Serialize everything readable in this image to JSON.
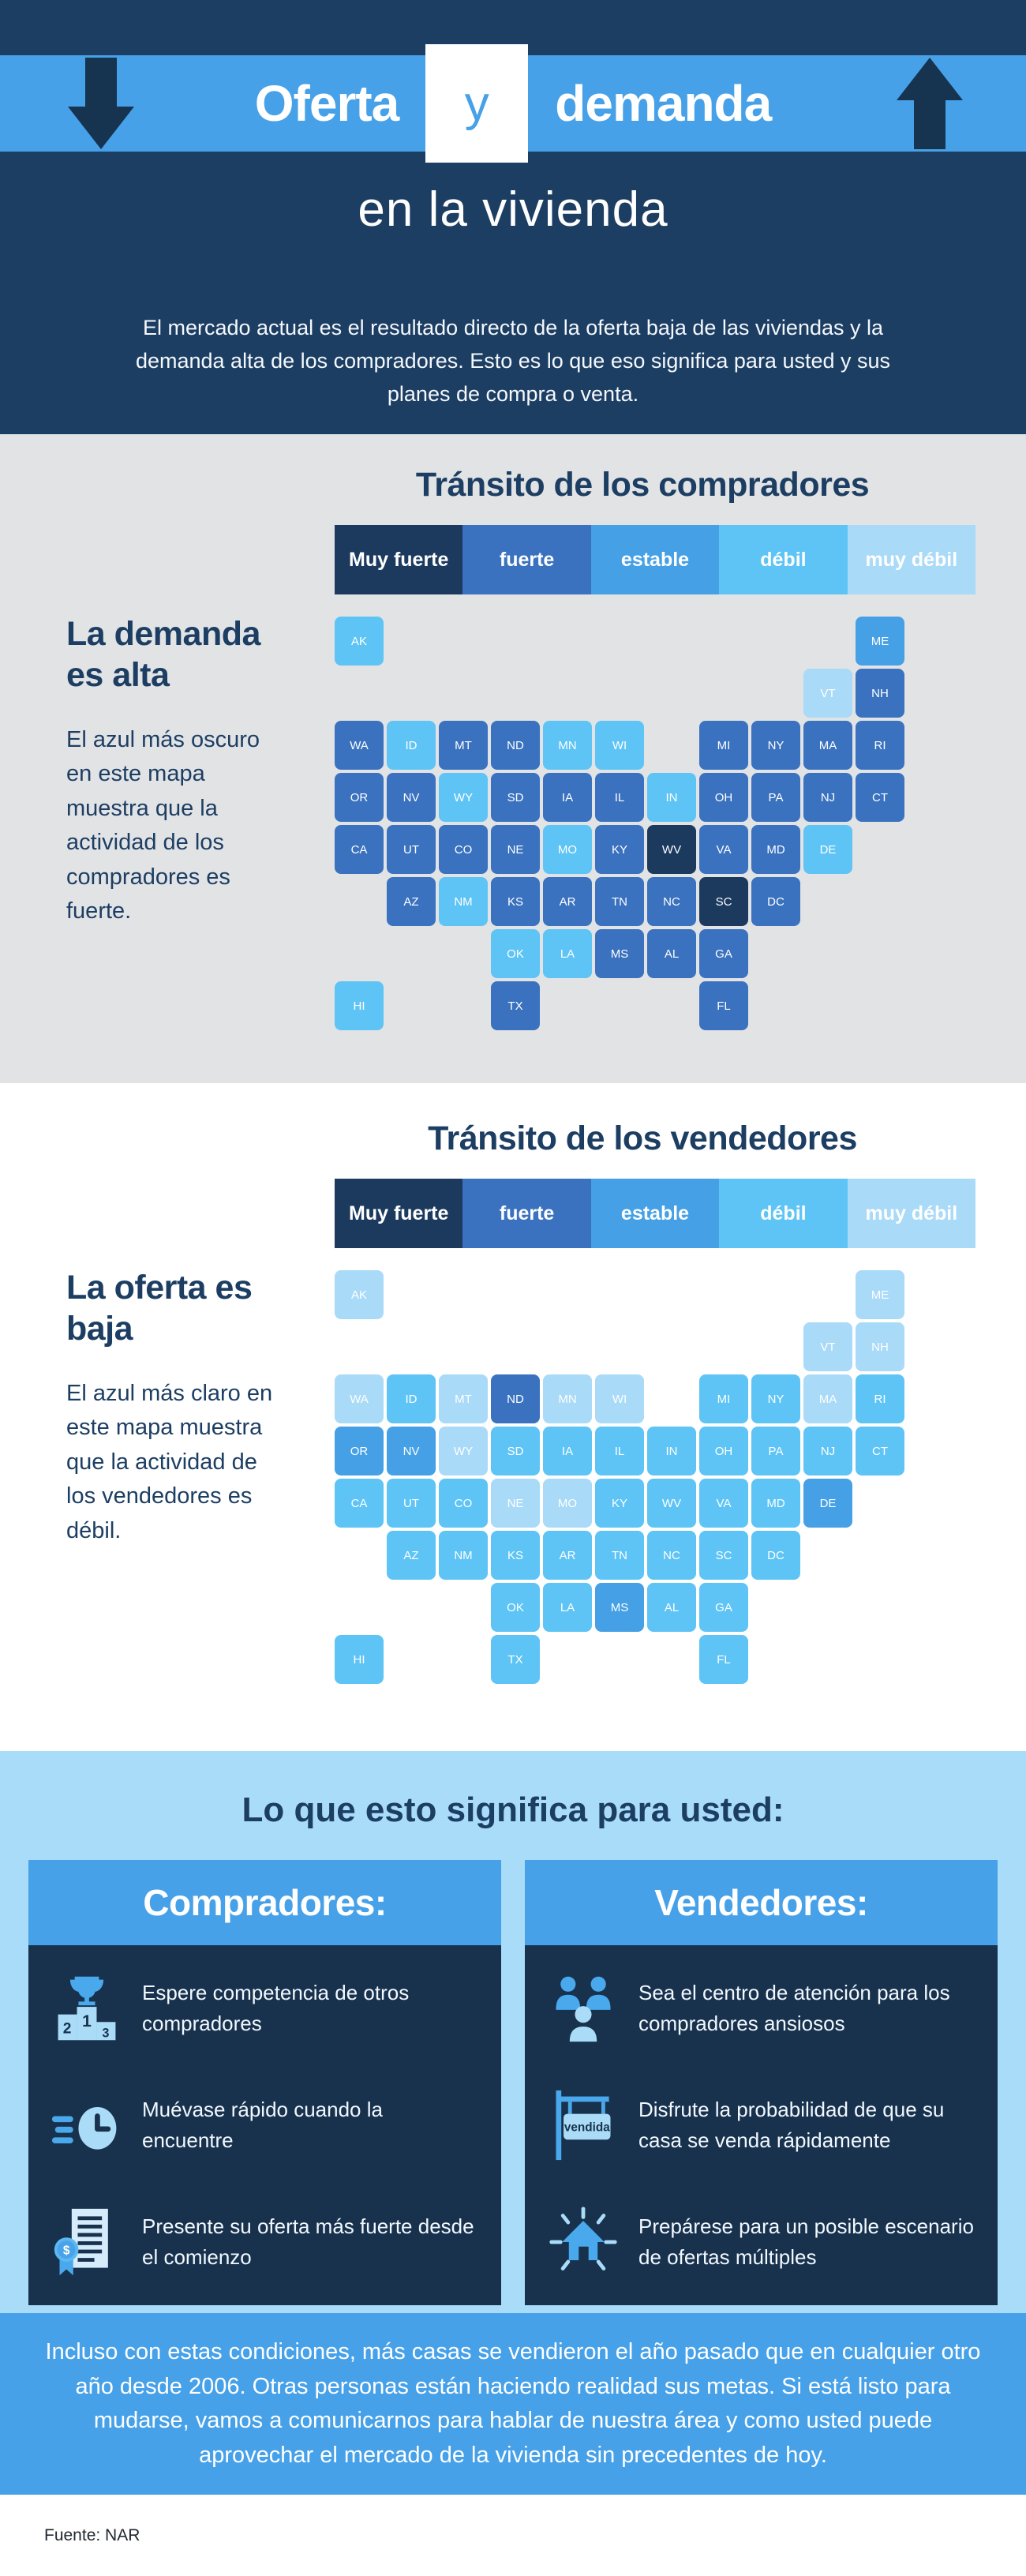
{
  "header": {
    "title_left": "Oferta",
    "title_conj": "y",
    "title_right": "demanda",
    "subtitle": "en la vivienda",
    "intro": "El mercado actual es el resultado directo de la oferta baja de las viviendas y la demanda alta de los compradores. Esto es lo que eso significa para usted y sus planes de compra o venta."
  },
  "colors": {
    "navy": "#1d3e63",
    "accent_blue": "#47a1e8",
    "arrow_navy": "#16334f",
    "card_body": "#18324e",
    "section_gray": "#e2e3e5",
    "meaning_bg": "#a9dcf8",
    "muy_fuerte": "#1b3a5e",
    "fuerte": "#3a72bf",
    "estable": "#45a0e5",
    "debil": "#5ec4f5",
    "muy_debil": "#a9daf8"
  },
  "legend": {
    "items": [
      {
        "key": "muy_fuerte",
        "label": "Muy fuerte"
      },
      {
        "key": "fuerte",
        "label": "fuerte"
      },
      {
        "key": "estable",
        "label": "estable"
      },
      {
        "key": "debil",
        "label": "débil"
      },
      {
        "key": "muy_debil",
        "label": "muy débil"
      }
    ]
  },
  "buyers_section": {
    "title": "Tránsito de los compradores",
    "heading": "La demanda es alta",
    "body": "El azul más oscuro en este mapa muestra que la actividad de los compradores es fuerte."
  },
  "sellers_section": {
    "title": "Tránsito de los vendedores",
    "heading": "La oferta es baja",
    "body": "El azul más claro en este mapa muestra que la actividad de los vendedores es débil."
  },
  "states": [
    {
      "abbr": "AK",
      "col": 0,
      "row": 0,
      "buyers": "debil",
      "sellers": "muy_debil"
    },
    {
      "abbr": "ME",
      "col": 10,
      "row": 0,
      "buyers": "estable",
      "sellers": "muy_debil"
    },
    {
      "abbr": "VT",
      "col": 9,
      "row": 1,
      "buyers": "muy_debil",
      "sellers": "muy_debil"
    },
    {
      "abbr": "NH",
      "col": 10,
      "row": 1,
      "buyers": "fuerte",
      "sellers": "muy_debil"
    },
    {
      "abbr": "WA",
      "col": 0,
      "row": 2,
      "buyers": "fuerte",
      "sellers": "muy_debil"
    },
    {
      "abbr": "ID",
      "col": 1,
      "row": 2,
      "buyers": "debil",
      "sellers": "debil"
    },
    {
      "abbr": "MT",
      "col": 2,
      "row": 2,
      "buyers": "fuerte",
      "sellers": "muy_debil"
    },
    {
      "abbr": "ND",
      "col": 3,
      "row": 2,
      "buyers": "fuerte",
      "sellers": "fuerte"
    },
    {
      "abbr": "MN",
      "col": 4,
      "row": 2,
      "buyers": "debil",
      "sellers": "muy_debil"
    },
    {
      "abbr": "WI",
      "col": 5,
      "row": 2,
      "buyers": "debil",
      "sellers": "muy_debil"
    },
    {
      "abbr": "MI",
      "col": 7,
      "row": 2,
      "buyers": "fuerte",
      "sellers": "debil"
    },
    {
      "abbr": "NY",
      "col": 8,
      "row": 2,
      "buyers": "fuerte",
      "sellers": "debil"
    },
    {
      "abbr": "MA",
      "col": 9,
      "row": 2,
      "buyers": "fuerte",
      "sellers": "muy_debil"
    },
    {
      "abbr": "RI",
      "col": 10,
      "row": 2,
      "buyers": "fuerte",
      "sellers": "debil"
    },
    {
      "abbr": "OR",
      "col": 0,
      "row": 3,
      "buyers": "fuerte",
      "sellers": "estable"
    },
    {
      "abbr": "NV",
      "col": 1,
      "row": 3,
      "buyers": "fuerte",
      "sellers": "estable"
    },
    {
      "abbr": "WY",
      "col": 2,
      "row": 3,
      "buyers": "debil",
      "sellers": "muy_debil"
    },
    {
      "abbr": "SD",
      "col": 3,
      "row": 3,
      "buyers": "fuerte",
      "sellers": "debil"
    },
    {
      "abbr": "IA",
      "col": 4,
      "row": 3,
      "buyers": "fuerte",
      "sellers": "debil"
    },
    {
      "abbr": "IL",
      "col": 5,
      "row": 3,
      "buyers": "fuerte",
      "sellers": "debil"
    },
    {
      "abbr": "IN",
      "col": 6,
      "row": 3,
      "buyers": "debil",
      "sellers": "debil"
    },
    {
      "abbr": "OH",
      "col": 7,
      "row": 3,
      "buyers": "fuerte",
      "sellers": "debil"
    },
    {
      "abbr": "PA",
      "col": 8,
      "row": 3,
      "buyers": "fuerte",
      "sellers": "debil"
    },
    {
      "abbr": "NJ",
      "col": 9,
      "row": 3,
      "buyers": "fuerte",
      "sellers": "debil"
    },
    {
      "abbr": "CT",
      "col": 10,
      "row": 3,
      "buyers": "fuerte",
      "sellers": "debil"
    },
    {
      "abbr": "CA",
      "col": 0,
      "row": 4,
      "buyers": "fuerte",
      "sellers": "debil"
    },
    {
      "abbr": "UT",
      "col": 1,
      "row": 4,
      "buyers": "fuerte",
      "sellers": "debil"
    },
    {
      "abbr": "CO",
      "col": 2,
      "row": 4,
      "buyers": "fuerte",
      "sellers": "debil"
    },
    {
      "abbr": "NE",
      "col": 3,
      "row": 4,
      "buyers": "fuerte",
      "sellers": "muy_debil"
    },
    {
      "abbr": "MO",
      "col": 4,
      "row": 4,
      "buyers": "debil",
      "sellers": "muy_debil"
    },
    {
      "abbr": "KY",
      "col": 5,
      "row": 4,
      "buyers": "fuerte",
      "sellers": "debil"
    },
    {
      "abbr": "WV",
      "col": 6,
      "row": 4,
      "buyers": "muy_fuerte",
      "sellers": "debil"
    },
    {
      "abbr": "VA",
      "col": 7,
      "row": 4,
      "buyers": "fuerte",
      "sellers": "debil"
    },
    {
      "abbr": "MD",
      "col": 8,
      "row": 4,
      "buyers": "fuerte",
      "sellers": "debil"
    },
    {
      "abbr": "DE",
      "col": 9,
      "row": 4,
      "buyers": "debil",
      "sellers": "estable"
    },
    {
      "abbr": "AZ",
      "col": 1,
      "row": 5,
      "buyers": "fuerte",
      "sellers": "debil"
    },
    {
      "abbr": "NM",
      "col": 2,
      "row": 5,
      "buyers": "debil",
      "sellers": "debil"
    },
    {
      "abbr": "KS",
      "col": 3,
      "row": 5,
      "buyers": "fuerte",
      "sellers": "debil"
    },
    {
      "abbr": "AR",
      "col": 4,
      "row": 5,
      "buyers": "fuerte",
      "sellers": "debil"
    },
    {
      "abbr": "TN",
      "col": 5,
      "row": 5,
      "buyers": "fuerte",
      "sellers": "debil"
    },
    {
      "abbr": "NC",
      "col": 6,
      "row": 5,
      "buyers": "fuerte",
      "sellers": "debil"
    },
    {
      "abbr": "SC",
      "col": 7,
      "row": 5,
      "buyers": "muy_fuerte",
      "sellers": "debil"
    },
    {
      "abbr": "DC",
      "col": 8,
      "row": 5,
      "buyers": "fuerte",
      "sellers": "debil"
    },
    {
      "abbr": "OK",
      "col": 3,
      "row": 6,
      "buyers": "debil",
      "sellers": "debil"
    },
    {
      "abbr": "LA",
      "col": 4,
      "row": 6,
      "buyers": "debil",
      "sellers": "debil"
    },
    {
      "abbr": "MS",
      "col": 5,
      "row": 6,
      "buyers": "fuerte",
      "sellers": "estable"
    },
    {
      "abbr": "AL",
      "col": 6,
      "row": 6,
      "buyers": "fuerte",
      "sellers": "debil"
    },
    {
      "abbr": "GA",
      "col": 7,
      "row": 6,
      "buyers": "fuerte",
      "sellers": "debil"
    },
    {
      "abbr": "HI",
      "col": 0,
      "row": 7,
      "buyers": "debil",
      "sellers": "debil"
    },
    {
      "abbr": "TX",
      "col": 3,
      "row": 7,
      "buyers": "fuerte",
      "sellers": "debil"
    },
    {
      "abbr": "FL",
      "col": 7,
      "row": 7,
      "buyers": "fuerte",
      "sellers": "debil"
    }
  ],
  "meaning": {
    "title": "Lo que esto significa para usted:",
    "buyers_card": {
      "heading": "Compradores:",
      "items": [
        {
          "icon": "podium",
          "text": "Espere competencia de otros compradores"
        },
        {
          "icon": "fast_clock",
          "text": "Muévase rápido cuando la encuentre"
        },
        {
          "icon": "offer_document",
          "text": "Presente su oferta más fuerte desde el comienzo"
        }
      ]
    },
    "sellers_card": {
      "heading": "Vendedores:",
      "items": [
        {
          "icon": "people_group",
          "text": "Sea el centro de atención para los compradores ansiosos"
        },
        {
          "icon": "sold_sign",
          "text": "Disfrute la probabilidad de que su casa se venda rápidamente",
          "sign_label": "vendida"
        },
        {
          "icon": "house_rays",
          "text": "Prepárese para un posible escenario de ofertas múltiples"
        }
      ]
    }
  },
  "footer": {
    "body": "Incluso con estas condiciones, más casas se vendieron el año pasado que en cualquier otro año desde 2006. Otras personas están haciendo realidad sus metas. Si está listo para mudarse, vamos a comunicarnos para hablar de nuestra área y como usted puede aprovechar el mercado de la vivienda sin precedentes de hoy.",
    "source": "Fuente: NAR"
  }
}
